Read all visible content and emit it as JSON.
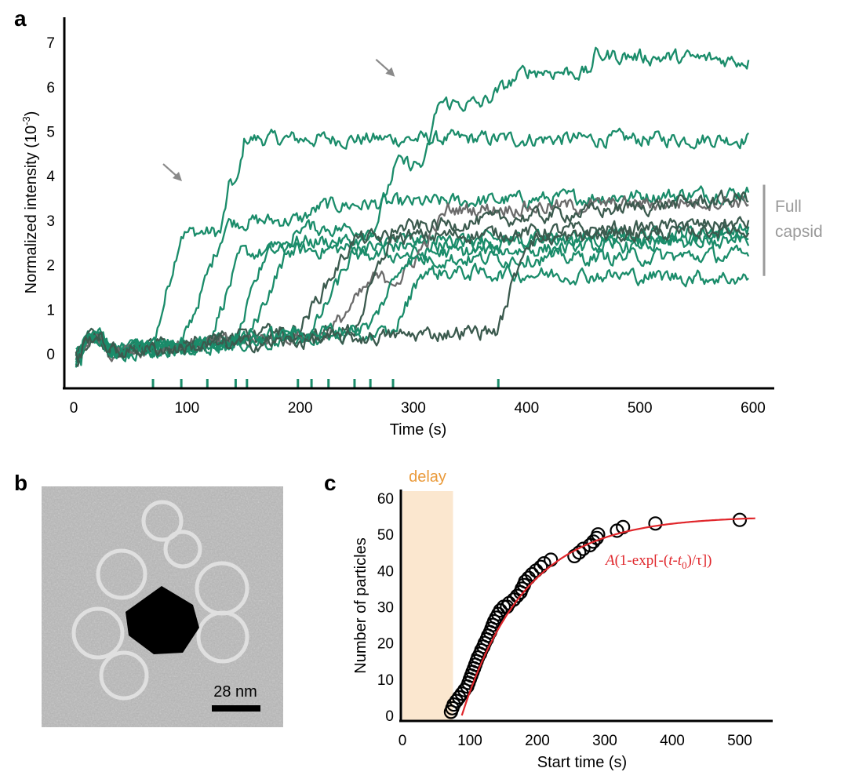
{
  "panels": {
    "a": "a",
    "b": "b",
    "c": "c"
  },
  "colors": {
    "green": "#1a8c6a",
    "dark": "#3b5a4e",
    "gray": "#6b6b6b",
    "bracket": "#9a9a9a",
    "fit": "#e0262b",
    "delay_fill": "#fbe7cf",
    "delay_text": "#ea9a3a"
  },
  "chart_data": [
    {
      "panel": "a",
      "type": "line",
      "xlabel": "Time (s)",
      "ylabel_main": "Normalized intensity (10",
      "ylabel_sup": "-3",
      "ylabel_end": ")",
      "xlim": [
        0,
        600
      ],
      "ylim": [
        -0.7,
        7.2
      ],
      "xticks": [
        0,
        100,
        200,
        300,
        400,
        500,
        600
      ],
      "yticks": [
        0,
        1,
        2,
        3,
        4,
        5,
        6,
        7
      ],
      "annotation_bracket": {
        "label_line1": "Full",
        "label_line2": "capsid",
        "y_range": [
          1.75,
          3.8
        ]
      },
      "arrows": [
        {
          "x": 97,
          "y": 3.95
        },
        {
          "x": 285,
          "y": 6.3
        }
      ],
      "start_markers": [
        70,
        95,
        118,
        143,
        153,
        198,
        210,
        225,
        248,
        262,
        282,
        375
      ],
      "series": [
        {
          "color": "green",
          "t0": 70,
          "pre": 0.1,
          "steps": [
            [
              70,
              2.6,
              25
            ],
            [
              130,
              1.1,
              8
            ],
            [
              145,
              1.0,
              6
            ]
          ],
          "end": 4.8,
          "drift": 0.0
        },
        {
          "color": "green",
          "t0": 95,
          "pre": 0.1,
          "steps": [
            [
              95,
              2.8,
              40
            ],
            [
              200,
              0.3,
              20
            ]
          ],
          "end": 3.6,
          "drift": 0.0
        },
        {
          "color": "green",
          "t0": 118,
          "pre": 0.2,
          "steps": [
            [
              118,
              2.0,
              30
            ]
          ],
          "end": 2.8,
          "drift": 0.1
        },
        {
          "color": "green",
          "t0": 143,
          "pre": 0.2,
          "steps": [
            [
              143,
              2.3,
              30
            ]
          ],
          "end": 2.6,
          "drift": 0.0
        },
        {
          "color": "green",
          "t0": 153,
          "pre": 0.3,
          "steps": [
            [
              153,
              2.6,
              45
            ],
            [
              265,
              1.5,
              20
            ],
            [
              310,
              1.4,
              12
            ],
            [
              360,
              0.8,
              40
            ],
            [
              455,
              0.4,
              6
            ]
          ],
          "end": 6.6,
          "drift": 0.0
        },
        {
          "color": "dark",
          "t0": 198,
          "pre": 0.6,
          "steps": [
            [
              198,
              2.0,
              50
            ]
          ],
          "end": 3.0,
          "drift": 0.1
        },
        {
          "color": "green",
          "t0": 210,
          "pre": 0.5,
          "steps": [
            [
              210,
              1.7,
              35
            ]
          ],
          "end": 2.6,
          "drift": 0.0
        },
        {
          "color": "gray",
          "t0": 225,
          "pre": 0.5,
          "steps": [
            [
              225,
              1.2,
              40
            ],
            [
              290,
              1.5,
              40
            ]
          ],
          "end": 3.5,
          "drift": 0.0
        },
        {
          "color": "dark",
          "t0": 248,
          "pre": 0.6,
          "steps": [
            [
              248,
              2.2,
              35
            ]
          ],
          "end": 3.6,
          "drift": 0.3
        },
        {
          "color": "green",
          "t0": 262,
          "pre": 0.7,
          "steps": [
            [
              262,
              1.5,
              30
            ]
          ],
          "end": 2.3,
          "drift": 0.0
        },
        {
          "color": "green",
          "t0": 282,
          "pre": 0.5,
          "steps": [
            [
              282,
              1.4,
              25
            ]
          ],
          "end": 1.75,
          "drift": 0.0
        },
        {
          "color": "dark",
          "t0": 375,
          "pre": 0.6,
          "steps": [
            [
              375,
              2.0,
              25
            ]
          ],
          "end": 2.9,
          "drift": 0.0
        }
      ]
    },
    {
      "panel": "c",
      "type": "scatter",
      "xlabel": "Start time (s)",
      "ylabel": "Number of particles",
      "xlim": [
        0,
        530
      ],
      "ylim": [
        0,
        62
      ],
      "xticks": [
        0,
        100,
        200,
        300,
        400,
        500
      ],
      "yticks": [
        0,
        10,
        20,
        30,
        40,
        50,
        60
      ],
      "delay_label": "delay",
      "delay_range": [
        0,
        75
      ],
      "fit_label_A": "A",
      "fit_label_mid": "(1-exp[-(",
      "fit_label_t": "t",
      "fit_label_dash": "-",
      "fit_label_t0": "t",
      "fit_label_sub": "0",
      "fit_label_end": ")/τ])",
      "fit": {
        "A": 55,
        "t0": 88,
        "tau": 95
      },
      "points": [
        [
          72,
          1
        ],
        [
          74,
          2
        ],
        [
          76,
          3
        ],
        [
          80,
          4
        ],
        [
          84,
          5
        ],
        [
          88,
          6
        ],
        [
          92,
          7
        ],
        [
          96,
          8
        ],
        [
          98,
          9
        ],
        [
          100,
          10
        ],
        [
          102,
          11
        ],
        [
          104,
          12
        ],
        [
          106,
          13
        ],
        [
          108,
          14
        ],
        [
          110,
          15
        ],
        [
          112,
          16
        ],
        [
          115,
          17
        ],
        [
          117,
          18
        ],
        [
          120,
          19
        ],
        [
          122,
          20
        ],
        [
          125,
          21
        ],
        [
          127,
          22
        ],
        [
          130,
          23
        ],
        [
          132,
          24
        ],
        [
          134,
          25
        ],
        [
          136,
          26
        ],
        [
          139,
          27
        ],
        [
          142,
          28
        ],
        [
          145,
          29
        ],
        [
          150,
          30
        ],
        [
          155,
          30
        ],
        [
          158,
          31
        ],
        [
          165,
          32
        ],
        [
          170,
          33
        ],
        [
          175,
          34
        ],
        [
          177,
          35
        ],
        [
          180,
          36
        ],
        [
          182,
          37
        ],
        [
          187,
          38
        ],
        [
          192,
          39
        ],
        [
          198,
          40
        ],
        [
          205,
          41
        ],
        [
          210,
          42
        ],
        [
          220,
          43
        ],
        [
          255,
          44
        ],
        [
          262,
          45
        ],
        [
          268,
          46
        ],
        [
          278,
          47
        ],
        [
          283,
          48
        ],
        [
          288,
          49
        ],
        [
          290,
          50
        ],
        [
          318,
          51
        ],
        [
          327,
          52
        ],
        [
          375,
          53
        ],
        [
          500,
          54
        ]
      ]
    }
  ],
  "panel_b": {
    "scale_label": "28 nm"
  }
}
